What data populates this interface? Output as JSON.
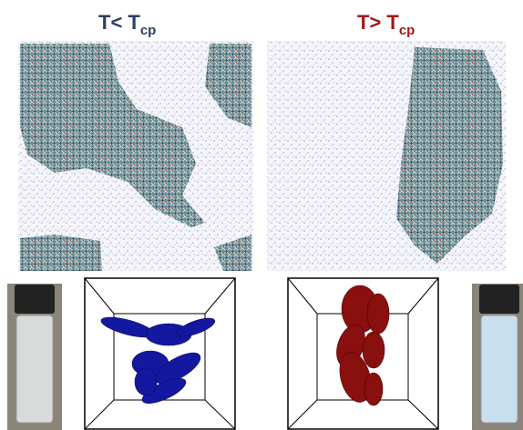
{
  "panels": [
    {
      "label": "T< T",
      "subscript": "cp"
    },
    {
      "label": "T> T",
      "subscript": "cp"
    }
  ]
}
